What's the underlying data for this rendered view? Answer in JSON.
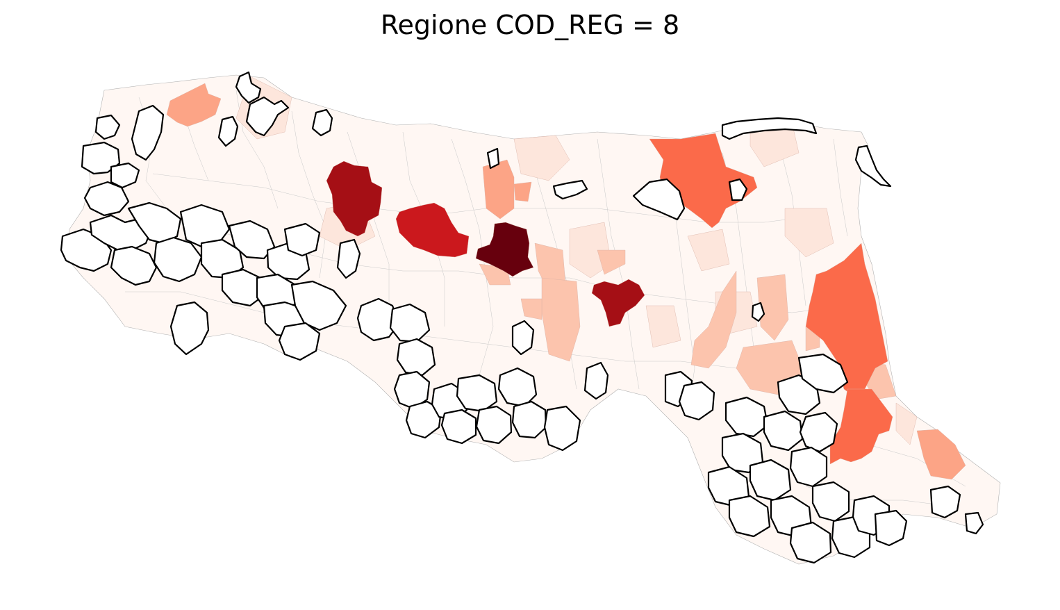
{
  "title": "Regione COD_REG = 8",
  "colors": {
    "background": "#ffffff",
    "base_fill": "#fff7f3",
    "light_fill": "#fde6dc",
    "mid_light_fill": "#fcc4ad",
    "mid_fill": "#fca486",
    "orange_fill": "#fb6a4a",
    "red_fill": "#cb181d",
    "dark_red_fill": "#a50f15",
    "darkest_fill": "#67000d",
    "no_data_fill": "#ffffff",
    "no_data_stroke": "#000000"
  }
}
